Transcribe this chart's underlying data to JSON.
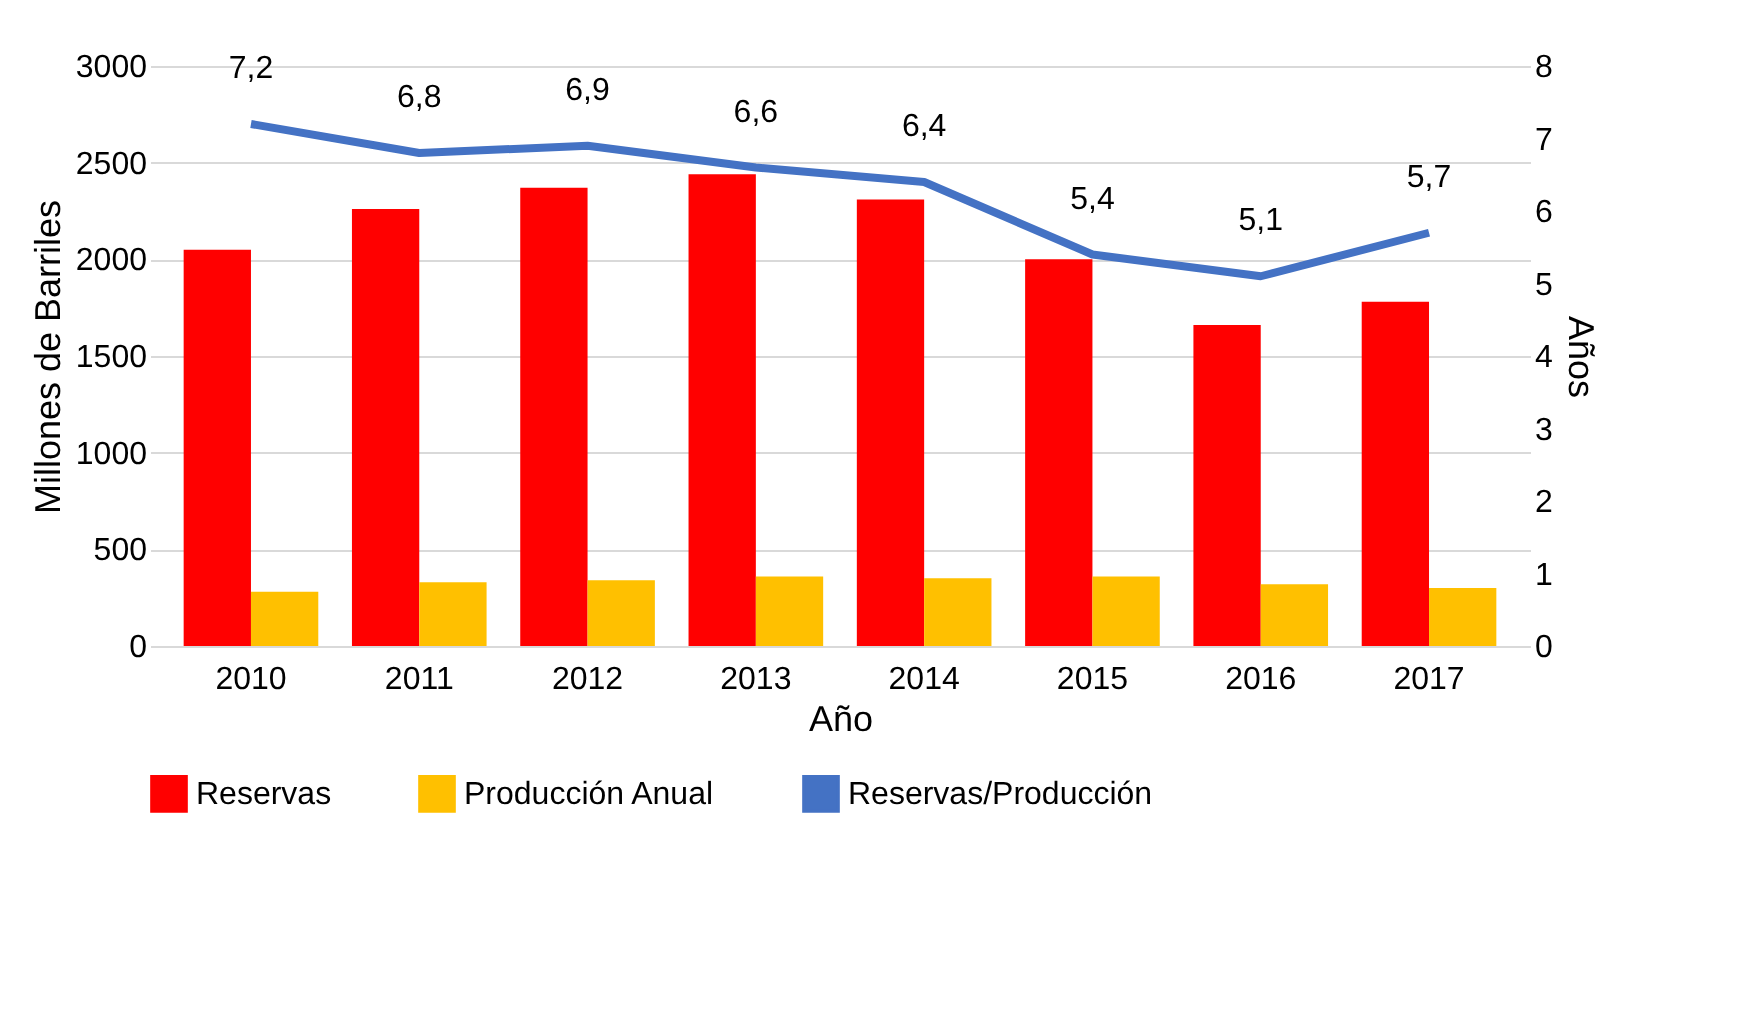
{
  "chart_data": {
    "type": "bar",
    "xlabel": "Año",
    "ylabel": "Millones de Barriles",
    "y2label": "Años",
    "categories": [
      "2010",
      "2011",
      "2012",
      "2013",
      "2014",
      "2015",
      "2016",
      "2017"
    ],
    "series": [
      {
        "name": "Reservas",
        "color": "#ff0000",
        "values": [
          2050,
          2260,
          2370,
          2440,
          2310,
          2000,
          1660,
          1780
        ]
      },
      {
        "name": "Producción Anual",
        "color": "#ffc000",
        "values": [
          280,
          330,
          340,
          360,
          350,
          360,
          320,
          300
        ]
      },
      {
        "name": "Reservas/Producción",
        "color": "#4472c4",
        "type": "line",
        "axis": "y2",
        "values": [
          7.2,
          6.8,
          6.9,
          6.6,
          6.4,
          5.4,
          5.1,
          5.7
        ],
        "value_labels": [
          "7,2",
          "6,8",
          "6,9",
          "6,6",
          "6,4",
          "5,4",
          "5,1",
          "5,7"
        ]
      }
    ],
    "ylim": [
      0,
      3000
    ],
    "yticks": [
      0,
      500,
      1000,
      1500,
      2000,
      2500,
      3000
    ],
    "y2lim": [
      0,
      8
    ],
    "y2ticks": [
      0,
      1,
      2,
      3,
      4,
      5,
      6,
      7,
      8
    ],
    "grid": "y",
    "legend": "bottom",
    "marker": "none",
    "line_style": "solid"
  }
}
